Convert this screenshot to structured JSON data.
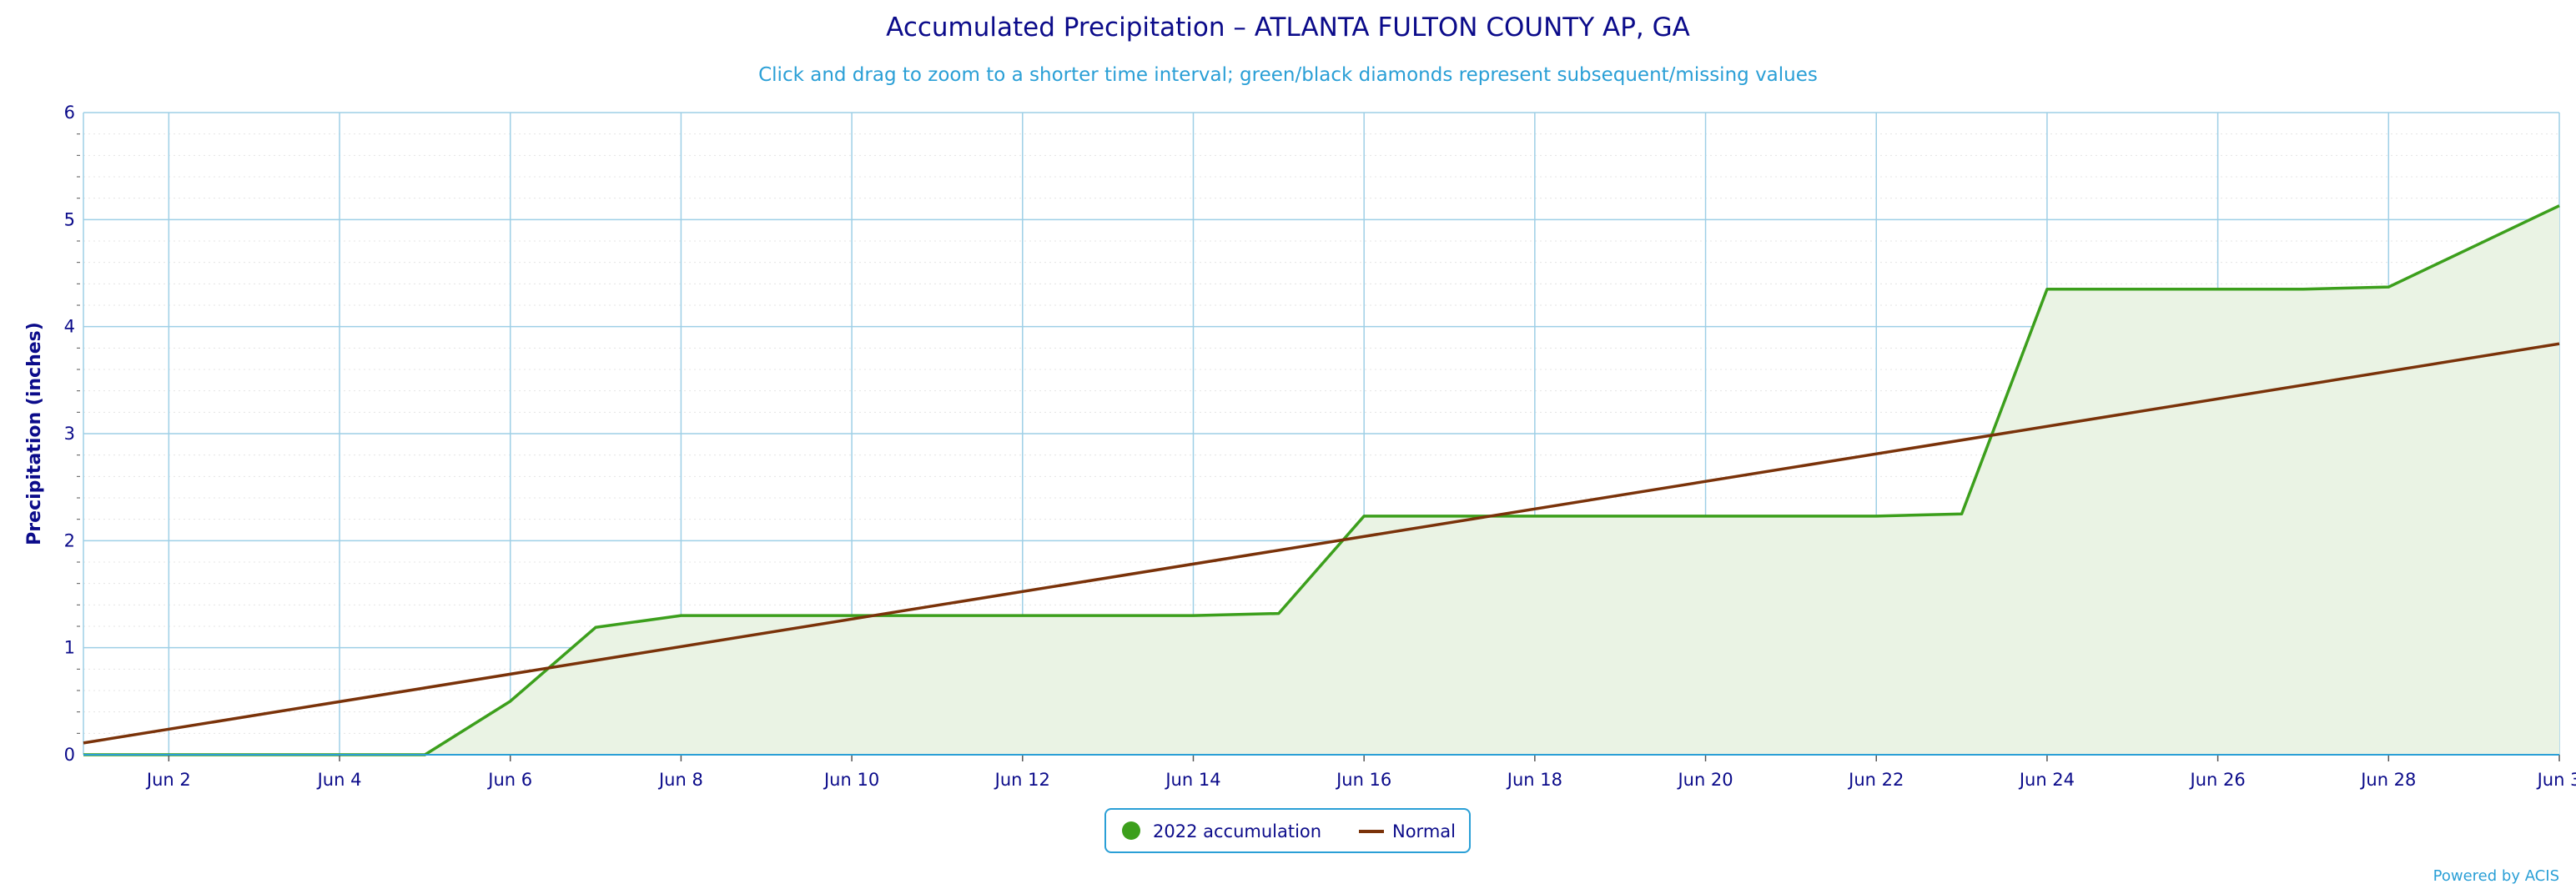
{
  "chart_data": {
    "type": "area",
    "title": "Accumulated Precipitation – ATLANTA FULTON COUNTY AP, GA",
    "subtitle": "Click and drag to zoom to a shorter time interval; green/black diamonds represent subsequent/missing values",
    "xlabel": "",
    "ylabel": "Precipitation (inches)",
    "ylim": [
      0,
      6
    ],
    "yticks": [
      0,
      1,
      2,
      3,
      4,
      5,
      6
    ],
    "x_day_range": [
      1,
      30
    ],
    "x_month": "Jun",
    "xticks": [
      "Jun 2",
      "Jun 4",
      "Jun 6",
      "Jun 8",
      "Jun 10",
      "Jun 12",
      "Jun 14",
      "Jun 16",
      "Jun 18",
      "Jun 20",
      "Jun 22",
      "Jun 24",
      "Jun 26",
      "Jun 28",
      "Jun 3"
    ],
    "grid": true,
    "legend_position": "bottom-center",
    "series": [
      {
        "name": "2022 accumulation",
        "color": "#3c9f1c",
        "fill": "#eaf3e4",
        "x": [
          "Jun 1",
          "Jun 2",
          "Jun 3",
          "Jun 4",
          "Jun 5",
          "Jun 6",
          "Jun 7",
          "Jun 8",
          "Jun 9",
          "Jun 10",
          "Jun 11",
          "Jun 12",
          "Jun 13",
          "Jun 14",
          "Jun 15",
          "Jun 16",
          "Jun 17",
          "Jun 18",
          "Jun 19",
          "Jun 20",
          "Jun 21",
          "Jun 22",
          "Jun 23",
          "Jun 24",
          "Jun 25",
          "Jun 26",
          "Jun 27",
          "Jun 28",
          "Jun 29",
          "Jun 30"
        ],
        "values": [
          0.0,
          0.0,
          0.0,
          0.0,
          0.0,
          0.5,
          1.19,
          1.3,
          1.3,
          1.3,
          1.3,
          1.3,
          1.3,
          1.3,
          1.32,
          2.23,
          2.23,
          2.23,
          2.23,
          2.23,
          2.23,
          2.23,
          2.25,
          4.35,
          4.35,
          4.35,
          4.35,
          4.37,
          4.75,
          5.13
        ]
      },
      {
        "name": "Normal",
        "color": "#7a3209",
        "x": [
          "Jun 1",
          "Jun 30"
        ],
        "values": [
          0.11,
          3.84
        ]
      }
    ]
  },
  "credit": "Powered by ACIS"
}
